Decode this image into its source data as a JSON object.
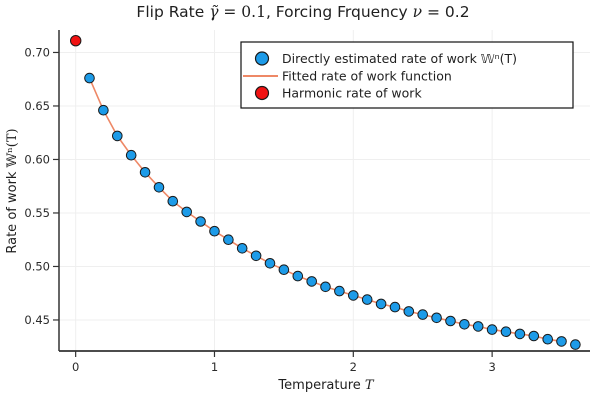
{
  "figure": {
    "title": {
      "part1": "Flip Rate ",
      "gamma_math": "γ̃",
      "eq1": " = 0.1",
      "part2": ", Forcing Frquency ",
      "nu_math": "ν",
      "eq2": " = 0.2"
    },
    "xlabel": {
      "text": "Temperature ",
      "math": "T"
    },
    "ylabel": {
      "text": "Rate of work ",
      "math": "𝕎ⁿ(T)"
    }
  },
  "legend": {
    "entries": [
      {
        "label": "Directly estimated rate of work 𝕎ⁿ(T)",
        "marker": "circle",
        "color": "#1D9BE8"
      },
      {
        "label": "Fitted rate of work function",
        "marker": "line",
        "color": "#EE8866"
      },
      {
        "label": "Harmonic rate of work",
        "marker": "circle",
        "color": "#F11212"
      }
    ]
  },
  "chart_data": {
    "type": "scatter",
    "title": "Flip Rate γ̃ = 0.1, Forcing Frquency ν = 0.2",
    "xlabel": "Temperature T",
    "ylabel": "Rate of work 𝕎ⁿ(T)",
    "xlim": [
      -0.12,
      3.705
    ],
    "ylim": [
      0.421,
      0.721
    ],
    "xticks": [
      0,
      1,
      2,
      3
    ],
    "yticks": [
      0.45,
      0.5,
      0.55,
      0.6,
      0.65,
      0.7
    ],
    "grid": true,
    "legend_position": "top-right",
    "colors": {
      "scatter": "#1D9BE8",
      "fitted_line": "#EE8866",
      "harmonic": "#F11212",
      "marker_edge": "#1a1a1a",
      "gridline": "#efefef",
      "spine": "#333333"
    },
    "series": [
      {
        "name": "Directly estimated rate of work 𝕎ⁿ(T)",
        "type": "scatter",
        "x": [
          0.1,
          0.2,
          0.3,
          0.4,
          0.5,
          0.6,
          0.7,
          0.8,
          0.9,
          1.0,
          1.1,
          1.2,
          1.3,
          1.4,
          1.5,
          1.6,
          1.7,
          1.8,
          1.9,
          2.0,
          2.1,
          2.2,
          2.3,
          2.4,
          2.5,
          2.6,
          2.7,
          2.8,
          2.9,
          3.0,
          3.1,
          3.2,
          3.3,
          3.4,
          3.5,
          3.6
        ],
        "y": [
          0.676,
          0.646,
          0.622,
          0.604,
          0.588,
          0.574,
          0.561,
          0.551,
          0.542,
          0.533,
          0.525,
          0.517,
          0.51,
          0.503,
          0.497,
          0.491,
          0.486,
          0.481,
          0.477,
          0.473,
          0.469,
          0.465,
          0.462,
          0.458,
          0.455,
          0.452,
          0.449,
          0.446,
          0.444,
          0.441,
          0.439,
          0.437,
          0.435,
          0.432,
          0.43,
          0.427
        ]
      },
      {
        "name": "Fitted rate of work function",
        "type": "line",
        "x": [
          0.1,
          0.2,
          0.3,
          0.4,
          0.5,
          0.6,
          0.7,
          0.8,
          0.9,
          1.0,
          1.1,
          1.2,
          1.3,
          1.4,
          1.5,
          1.6,
          1.7,
          1.8,
          1.9,
          2.0,
          2.1,
          2.2,
          2.3,
          2.4,
          2.5,
          2.6,
          2.7,
          2.8,
          2.9,
          3.0,
          3.1,
          3.2,
          3.3,
          3.4,
          3.5
        ],
        "y": [
          0.676,
          0.646,
          0.622,
          0.604,
          0.588,
          0.574,
          0.561,
          0.551,
          0.542,
          0.533,
          0.525,
          0.517,
          0.51,
          0.503,
          0.497,
          0.491,
          0.486,
          0.481,
          0.477,
          0.473,
          0.469,
          0.465,
          0.462,
          0.458,
          0.455,
          0.452,
          0.449,
          0.446,
          0.444,
          0.441,
          0.439,
          0.437,
          0.435,
          0.432,
          0.43
        ]
      },
      {
        "name": "Harmonic rate of work",
        "type": "scatter",
        "x": [
          0.0
        ],
        "y": [
          0.711
        ]
      }
    ]
  }
}
